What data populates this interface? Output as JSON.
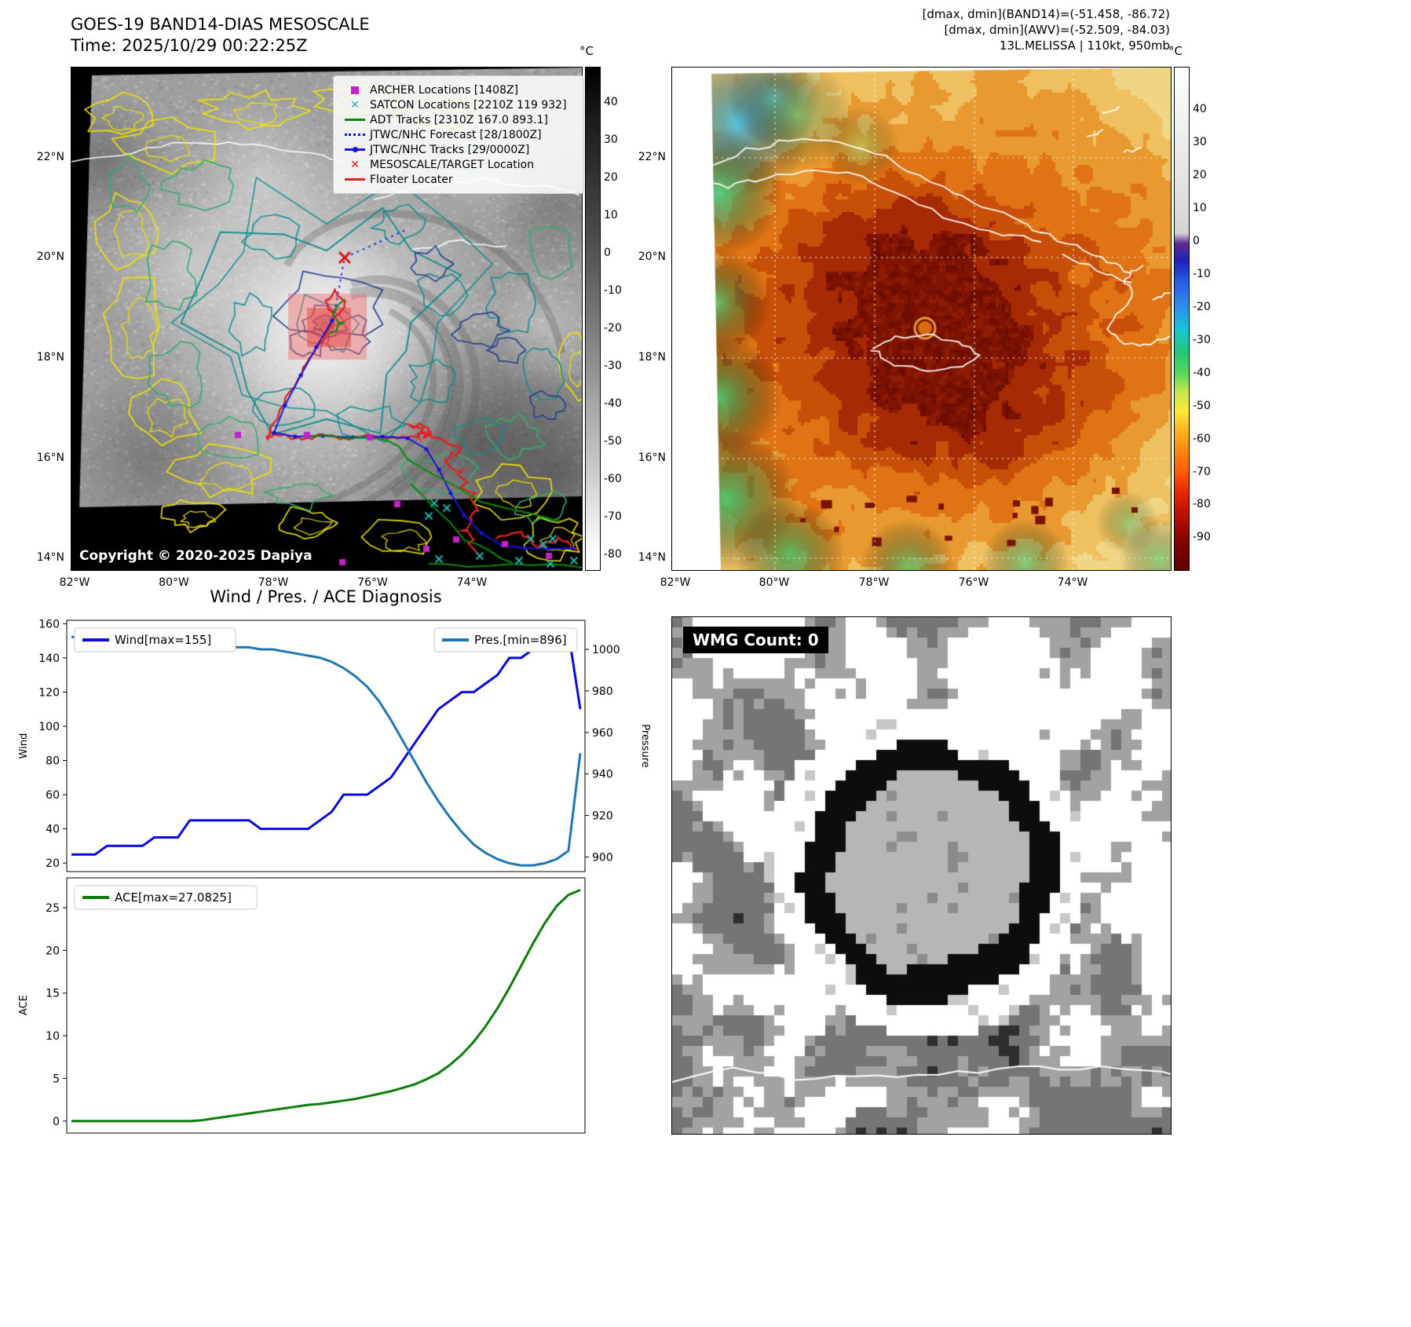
{
  "band14": {
    "title_line1": "GOES-19 BAND14-DIAS MESOSCALE",
    "title_line2": "Time: 2025/10/29 00:22:25Z",
    "copyright": "Copyright © 2020-2025 Dapiya",
    "colorbar_unit": "°C",
    "colorbar_ticks": [
      40,
      30,
      20,
      10,
      0,
      -10,
      -20,
      -30,
      -40,
      -50,
      -60,
      -70,
      -80
    ],
    "lat_ticks": [
      "22°N",
      "20°N",
      "18°N",
      "16°N",
      "14°N"
    ],
    "lon_ticks": [
      "82°W",
      "80°W",
      "78°W",
      "76°W",
      "74°W"
    ],
    "legend": [
      {
        "label": "ARCHER Locations [1408Z]",
        "marker": "square",
        "color": "#c520c5"
      },
      {
        "label": "SATCON Locations [2210Z 119 932]",
        "marker": "x",
        "color": "#20b2aa"
      },
      {
        "label": "ADT Tracks [2310Z 167.0 893.1]",
        "marker": "line",
        "color": "#0a8a0a"
      },
      {
        "label": "JTWC/NHC Forecast [28/1800Z]",
        "marker": "dotted",
        "color": "#1515e0"
      },
      {
        "label": "JTWC/NHC Tracks [29/0000Z]",
        "marker": "line-dot",
        "color": "#1515e0"
      },
      {
        "label": "MESOSCALE/TARGET Location",
        "marker": "x",
        "color": "#e81010"
      },
      {
        "label": "Floater Locater",
        "marker": "line",
        "color": "#e02020"
      }
    ]
  },
  "awv": {
    "header_line1": "[dmax, dmin](BAND14)=(-51.458, -86.72)",
    "header_line2": "[dmax, dmin](AWV)=(-52.509, -84.03)",
    "header_line3": "13L.MELISSA | 110kt, 950mb",
    "colorbar_unit": "°C",
    "colorbar_ticks": [
      40,
      30,
      20,
      10,
      0,
      -10,
      -20,
      -30,
      -40,
      -50,
      -60,
      -70,
      -80,
      -90
    ],
    "lat_ticks": [
      "22°N",
      "20°N",
      "18°N",
      "16°N",
      "14°N"
    ],
    "lon_ticks": [
      "82°W",
      "80°W",
      "78°W",
      "76°W",
      "74°W"
    ]
  },
  "wmg": {
    "label": "WMG Count: 0"
  },
  "chart_data": [
    {
      "type": "line",
      "title": "Wind / Pres. / ACE Diagnosis",
      "ylabel_left": "Wind",
      "ylabel_right": "Pressure",
      "ylim_left": [
        15,
        162
      ],
      "ylim_right": [
        893,
        1014
      ],
      "yticks_left": [
        20,
        40,
        60,
        80,
        100,
        120,
        140,
        160
      ],
      "yticks_right": [
        900,
        920,
        940,
        960,
        980,
        1000
      ],
      "grid": false,
      "legend_position": "top-left and top-right",
      "series": [
        {
          "name": "Wind[max=155]",
          "axis": "left",
          "color": "#0a0ae0",
          "values": [
            25,
            25,
            25,
            30,
            30,
            30,
            30,
            35,
            35,
            35,
            45,
            45,
            45,
            45,
            45,
            45,
            40,
            40,
            40,
            40,
            40,
            45,
            50,
            60,
            60,
            60,
            65,
            70,
            80,
            90,
            100,
            110,
            115,
            120,
            120,
            125,
            130,
            140,
            140,
            145,
            145,
            150,
            155,
            110
          ]
        },
        {
          "name": "Pres.[min=896]",
          "axis": "right",
          "color": "#1f77b4",
          "values": [
            1006,
            1006,
            1005,
            1005,
            1005,
            1004,
            1004,
            1004,
            1003,
            1003,
            1003,
            1002,
            1002,
            1002,
            1001,
            1001,
            1000,
            1000,
            999,
            998,
            997,
            996,
            994,
            991,
            987,
            982,
            975,
            966,
            956,
            946,
            936,
            927,
            919,
            912,
            906,
            902,
            899,
            897,
            896,
            896,
            897,
            899,
            903,
            950
          ]
        }
      ]
    },
    {
      "type": "line",
      "ylabel": "ACE",
      "ylim": [
        -1.4,
        28.5
      ],
      "yticks": [
        0,
        5,
        10,
        15,
        20,
        25
      ],
      "grid": false,
      "legend_position": "top-left",
      "series": [
        {
          "name": "ACE[max=27.0825]",
          "color": "#0a7d0a",
          "values": [
            0,
            0,
            0,
            0,
            0,
            0,
            0,
            0,
            0,
            0,
            0,
            0.1,
            0.3,
            0.5,
            0.7,
            0.9,
            1.1,
            1.3,
            1.5,
            1.7,
            1.9,
            2.0,
            2.2,
            2.4,
            2.6,
            2.9,
            3.2,
            3.5,
            3.9,
            4.3,
            4.9,
            5.6,
            6.6,
            7.8,
            9.3,
            11.1,
            13.2,
            15.6,
            18.2,
            20.8,
            23.2,
            25.2,
            26.5,
            27.0825
          ]
        }
      ]
    }
  ]
}
